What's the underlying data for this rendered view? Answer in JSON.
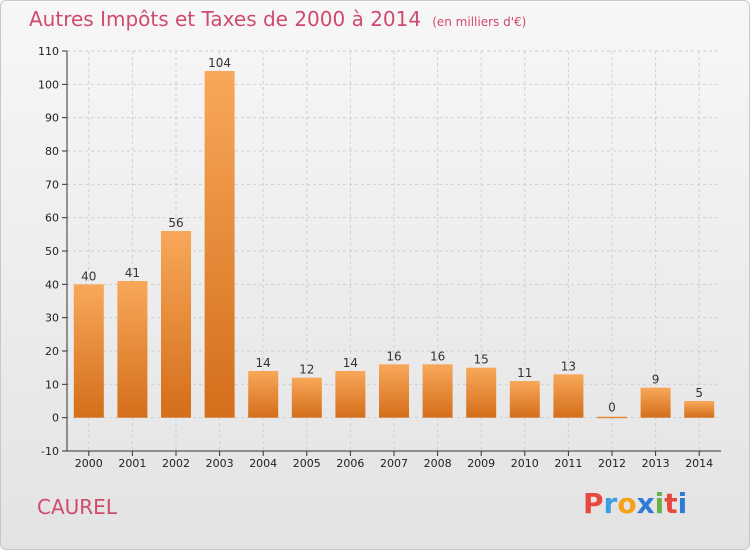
{
  "chart_data": {
    "type": "bar",
    "title": "Autres Impôts et Taxes de 2000 à 2014",
    "subtitle": "(en milliers d'€)",
    "categories": [
      "2000",
      "2001",
      "2002",
      "2003",
      "2004",
      "2005",
      "2006",
      "2007",
      "2008",
      "2009",
      "2010",
      "2011",
      "2012",
      "2013",
      "2014"
    ],
    "values": [
      40,
      41,
      56,
      104,
      14,
      12,
      14,
      16,
      16,
      15,
      11,
      13,
      0,
      9,
      5
    ],
    "ylim": [
      -10,
      110
    ],
    "yticks": [
      -10,
      0,
      10,
      20,
      30,
      40,
      50,
      60,
      70,
      80,
      90,
      100,
      110
    ],
    "grid": true,
    "bar_color": "#f08c2e"
  },
  "commune": "CAUREL",
  "logo": {
    "letters": [
      "P",
      "r",
      "o",
      "x",
      "i",
      "t",
      "i"
    ],
    "colors": [
      "#e8493f",
      "#3b9fe0",
      "#f4a21b",
      "#2e7bd6",
      "#6ab04c",
      "#e8493f",
      "#2e7bd6"
    ]
  }
}
